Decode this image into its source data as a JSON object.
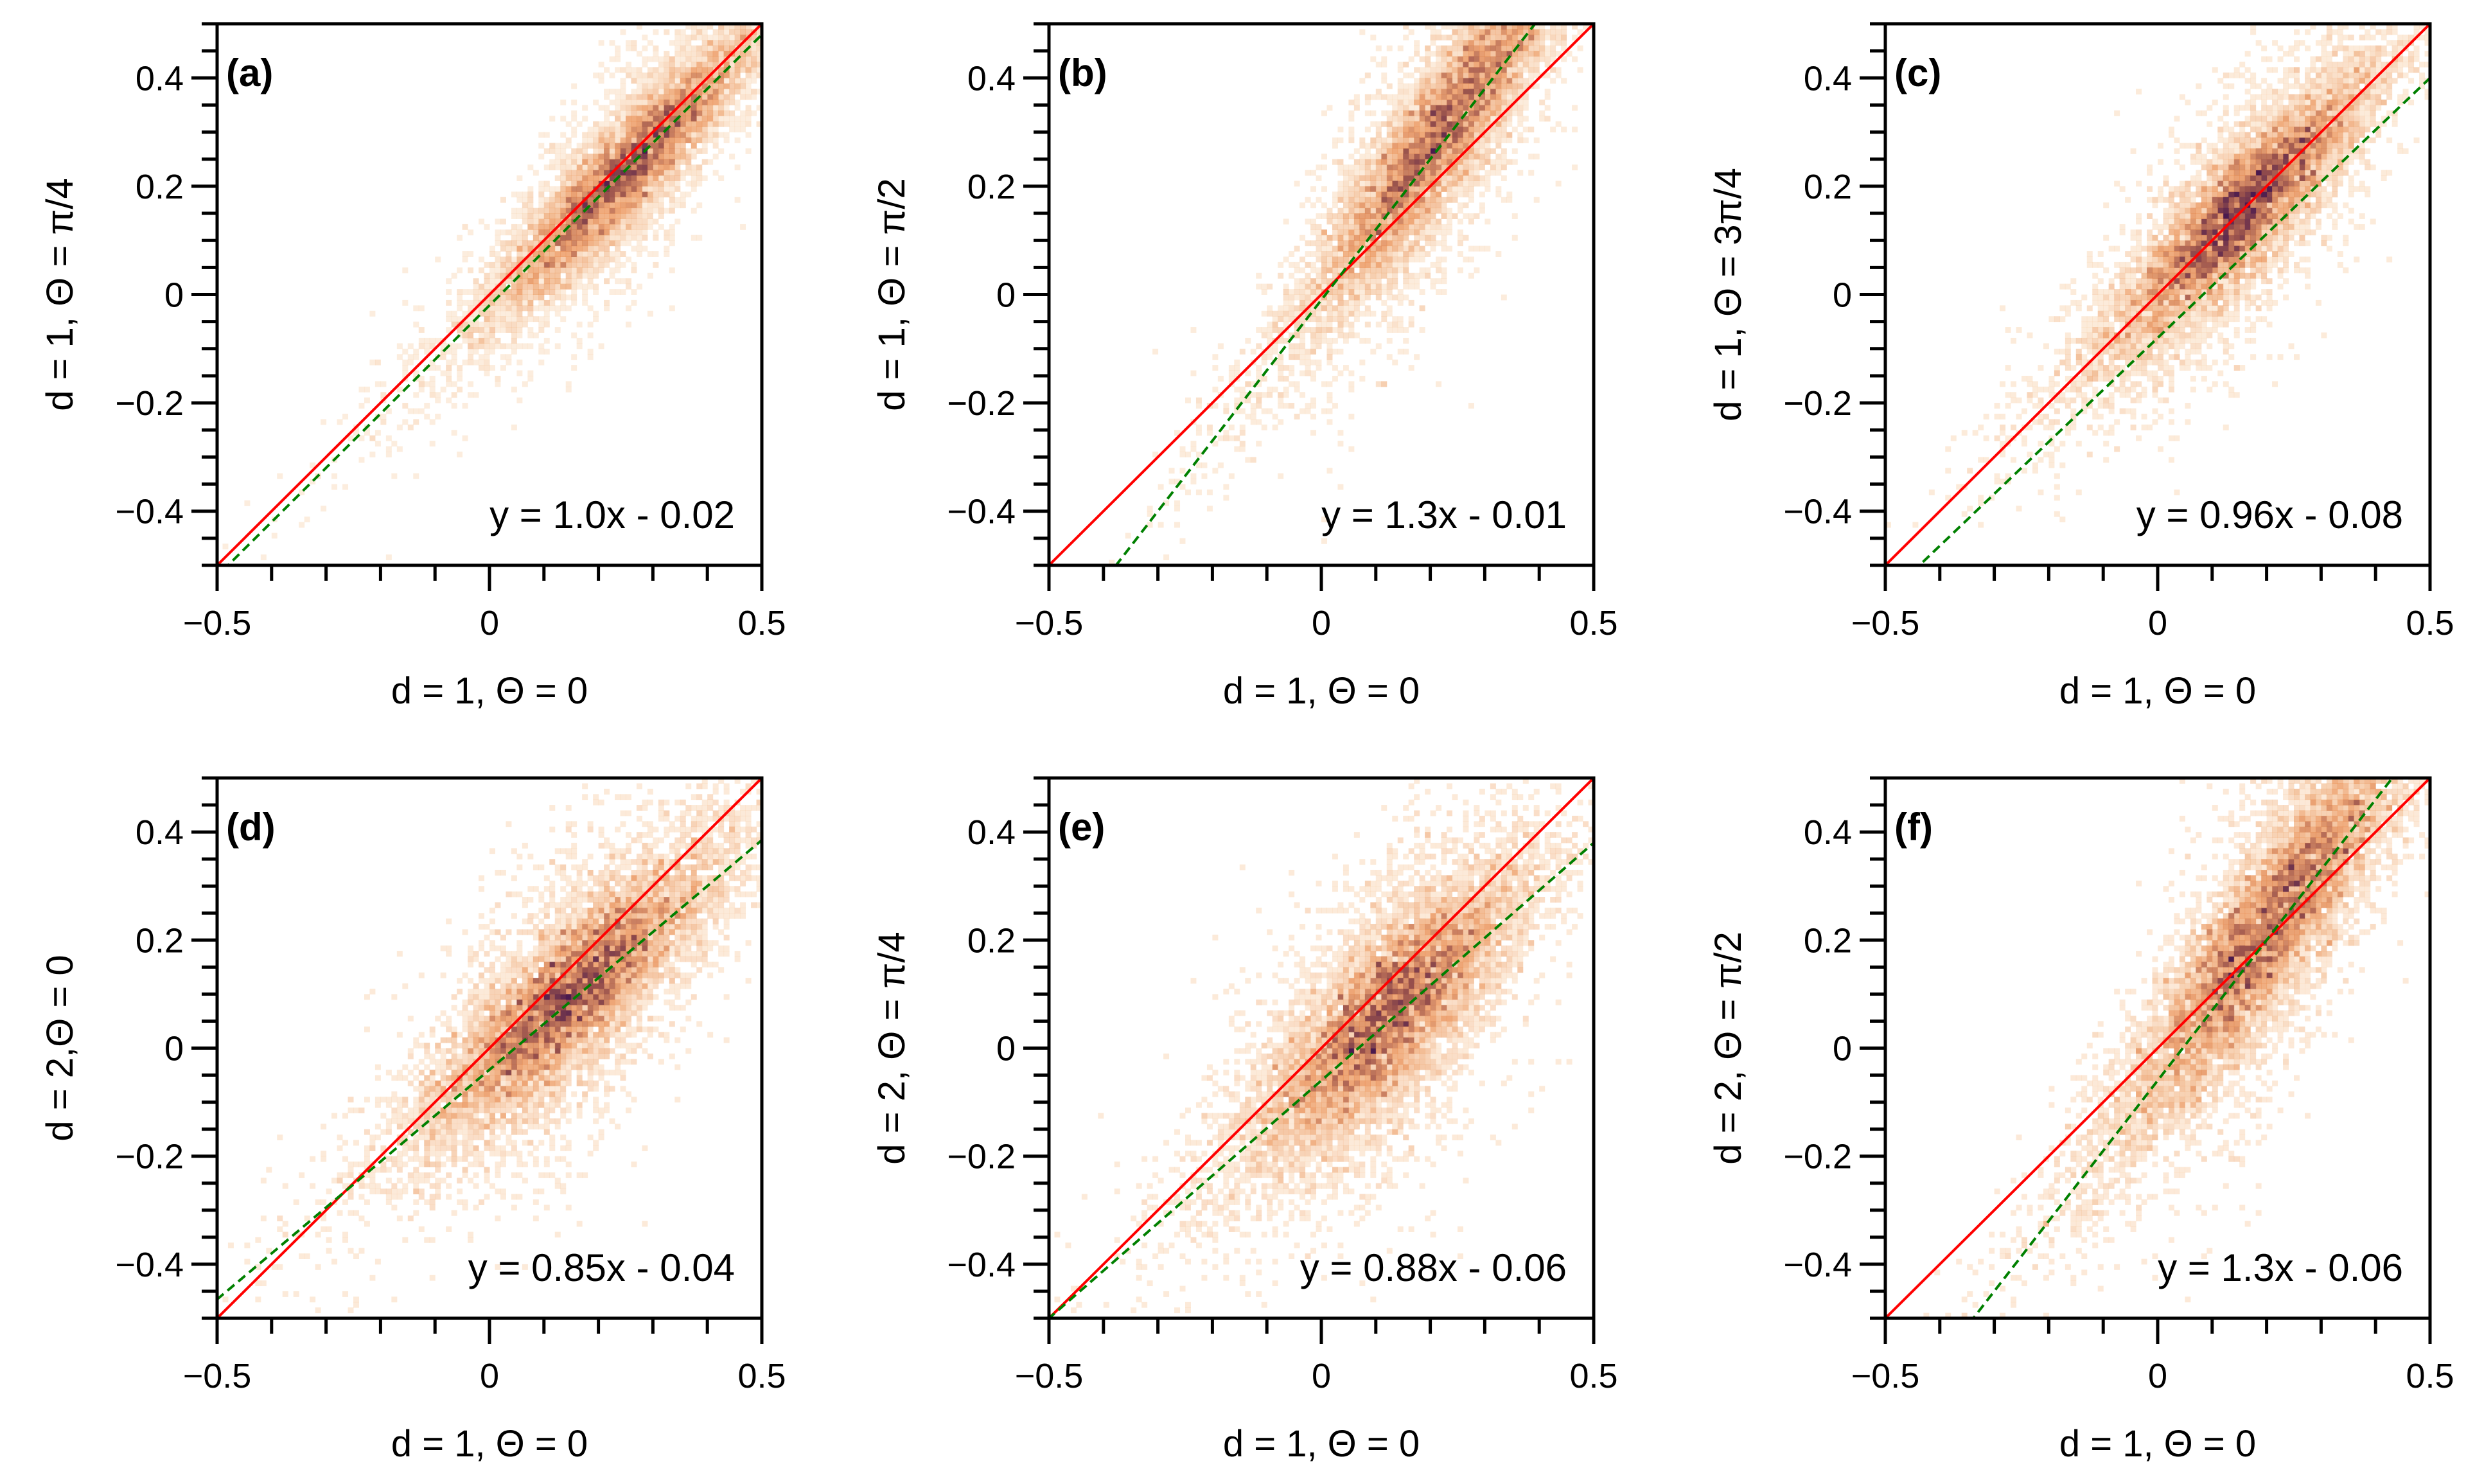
{
  "chart_data": [
    {
      "type": "heatmap",
      "panel_label": "(a)",
      "xlabel": "d = 1, Θ = 0",
      "ylabel": "d = 1, Θ = π/4",
      "xlim": [
        -0.5,
        0.5
      ],
      "ylim": [
        -0.5,
        0.5
      ],
      "xticks": [
        "−0.5",
        "0",
        "0.5"
      ],
      "yticks": [
        "−0.4",
        "−0.2",
        "0",
        "0.2",
        "0.4"
      ],
      "fit": {
        "slope": 1.0,
        "intercept": -0.02,
        "label": "y = 1.0x - 0.02"
      },
      "identity_line": true,
      "density_peak": [
        0.25,
        0.23
      ],
      "spread": [
        0.12,
        0.05
      ]
    },
    {
      "type": "heatmap",
      "panel_label": "(b)",
      "xlabel": "d = 1, Θ = 0",
      "ylabel": "d = 1, Θ = π/2",
      "xlim": [
        -0.5,
        0.5
      ],
      "ylim": [
        -0.5,
        0.5
      ],
      "xticks": [
        "−0.5",
        "0",
        "0.5"
      ],
      "yticks": [
        "−0.4",
        "−0.2",
        "0",
        "0.2",
        "0.4"
      ],
      "fit": {
        "slope": 1.3,
        "intercept": -0.01,
        "label": "y = 1.3x - 0.01"
      },
      "identity_line": true,
      "density_peak": [
        0.22,
        0.3
      ],
      "spread": [
        0.12,
        0.07
      ]
    },
    {
      "type": "heatmap",
      "panel_label": "(c)",
      "xlabel": "d = 1, Θ = 0",
      "ylabel": "d = 1, Θ = 3π/4",
      "xlim": [
        -0.5,
        0.5
      ],
      "ylim": [
        -0.5,
        0.5
      ],
      "xticks": [
        "−0.5",
        "0",
        "0.5"
      ],
      "yticks": [
        "−0.4",
        "−0.2",
        "0",
        "0.2",
        "0.4"
      ],
      "fit": {
        "slope": 0.96,
        "intercept": -0.08,
        "label": "y = 0.96x - 0.08"
      },
      "identity_line": true,
      "density_peak": [
        0.15,
        0.15
      ],
      "spread": [
        0.12,
        0.06
      ]
    },
    {
      "type": "heatmap",
      "panel_label": "(d)",
      "xlabel": "d = 1, Θ = 0",
      "ylabel": "d = 2,Θ = 0",
      "xlim": [
        -0.5,
        0.5
      ],
      "ylim": [
        -0.5,
        0.5
      ],
      "xticks": [
        "−0.5",
        "0",
        "0.5"
      ],
      "yticks": [
        "−0.4",
        "−0.2",
        "0",
        "0.2",
        "0.4"
      ],
      "fit": {
        "slope": 0.85,
        "intercept": -0.04,
        "label": "y = 0.85x - 0.04"
      },
      "identity_line": true,
      "density_peak": [
        0.15,
        0.1
      ],
      "spread": [
        0.13,
        0.07
      ]
    },
    {
      "type": "heatmap",
      "panel_label": "(e)",
      "xlabel": "d = 1, Θ = 0",
      "ylabel": "d = 2, Θ = π/4",
      "xlim": [
        -0.5,
        0.5
      ],
      "ylim": [
        -0.5,
        0.5
      ],
      "xticks": [
        "−0.5",
        "0",
        "0.5"
      ],
      "yticks": [
        "−0.4",
        "−0.2",
        "0",
        "0.2",
        "0.4"
      ],
      "fit": {
        "slope": 0.88,
        "intercept": -0.06,
        "label": "y = 0.88x - 0.06"
      },
      "identity_line": true,
      "density_peak": [
        0.12,
        0.06
      ],
      "spread": [
        0.12,
        0.08
      ]
    },
    {
      "type": "heatmap",
      "panel_label": "(f)",
      "xlabel": "d = 1, Θ = 0",
      "ylabel": "d = 2, Θ = π/2",
      "xlim": [
        -0.5,
        0.5
      ],
      "ylim": [
        -0.5,
        0.5
      ],
      "xticks": [
        "−0.5",
        "0",
        "0.5"
      ],
      "yticks": [
        "−0.4",
        "−0.2",
        "0",
        "0.2",
        "0.4"
      ],
      "fit": {
        "slope": 1.3,
        "intercept": -0.06,
        "label": "y = 1.3x - 0.06"
      },
      "identity_line": true,
      "density_peak": [
        0.2,
        0.22
      ],
      "spread": [
        0.13,
        0.08
      ]
    }
  ],
  "colors": {
    "identity": "#ff0000",
    "fit": "#008000",
    "density_low": "#fde9c9",
    "density_mid": "#e98a4a",
    "density_high": "#4a1a4e"
  }
}
